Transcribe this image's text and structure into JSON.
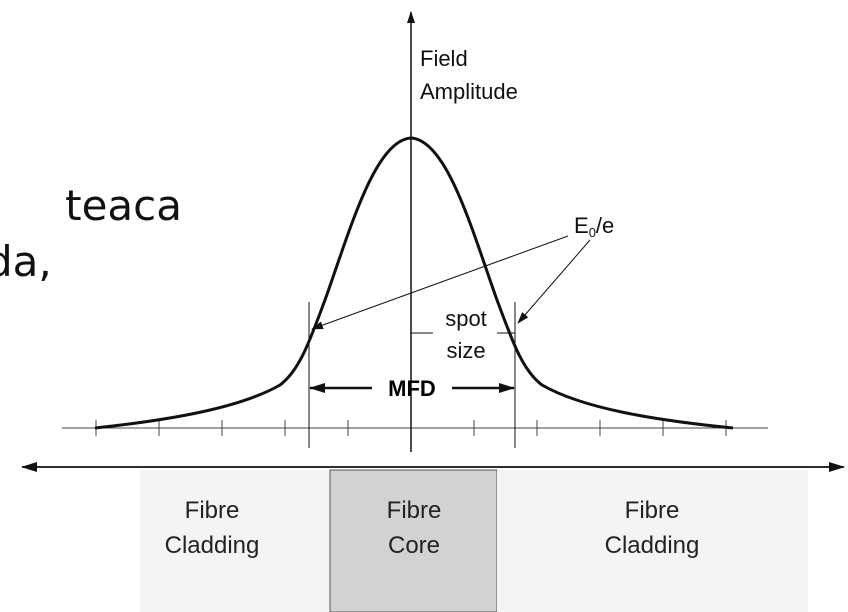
{
  "fragments": [
    "teaca",
    "da,"
  ],
  "axis_label": {
    "lines": [
      "Field",
      "Amplitude"
    ]
  },
  "e_label": {
    "main": "E",
    "sub": "0",
    "rest": "/e"
  },
  "spot_size": {
    "lines": [
      "spot",
      "size"
    ]
  },
  "mfd": "MFD",
  "regions": [
    {
      "lines": [
        "Fibre",
        "Cladding"
      ]
    },
    {
      "lines": [
        "Fibre",
        "Core"
      ]
    },
    {
      "lines": [
        "Fibre",
        "Cladding"
      ]
    }
  ]
}
